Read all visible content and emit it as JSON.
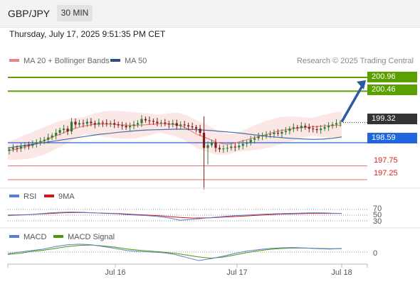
{
  "header": {
    "symbol": "GBP/JPY",
    "timeframe": "30 MIN"
  },
  "datetime": "Thursday, July 17, 2025 9:51:35 PM CET",
  "legend": {
    "ma20_label": "MA 20 + Bollinger Bands",
    "ma50_label": "MA 50",
    "copyright": "Research © 2025 Trading Central"
  },
  "colors": {
    "candle_up": "#2e7d32",
    "candle_down": "#7a1f1f",
    "ma20": "#f08080",
    "ma50": "#4a6fa5",
    "bollinger_fill": "#fbe3e3",
    "target_green": "#5aa000",
    "pivot_blue": "#2266dd",
    "support_red": "#e07070",
    "last_price_box": "#333333",
    "arrow": "#2a5aa0",
    "rsi": "#5b7fd0",
    "rsi_ma": "#d01818",
    "macd": "#5b7fd0",
    "macd_signal": "#4a9a00"
  },
  "levels": {
    "target2": "200.96",
    "target1": "200.46",
    "last": "199.32",
    "pivot": "198.59",
    "support1": "197.75",
    "support2": "197.25"
  },
  "rsi_panel": {
    "rsi_label": "RSI",
    "ma_label": "9MA",
    "levels": [
      "70",
      "50",
      "30"
    ]
  },
  "macd_panel": {
    "macd_label": "MACD",
    "signal_label": "MACD Signal",
    "zero_label": "0"
  },
  "xaxis": {
    "labels": [
      "Jul 16",
      "Jul 17",
      "Jul 18"
    ]
  },
  "chart_data": {
    "type": "candlestick",
    "x_range": [
      "Jul 15",
      "Jul 18"
    ],
    "y_range": [
      196.9,
      201.2
    ],
    "price_closes": [
      198.35,
      198.4,
      198.38,
      198.45,
      198.5,
      198.48,
      198.55,
      198.6,
      198.65,
      198.7,
      198.78,
      198.85,
      198.95,
      199.05,
      199.1,
      199.0,
      199.35,
      199.25,
      199.3,
      199.28,
      199.35,
      199.3,
      199.25,
      199.32,
      199.3,
      199.28,
      199.3,
      199.25,
      199.22,
      199.2,
      199.15,
      199.2,
      199.25,
      199.3,
      199.45,
      199.4,
      199.38,
      199.35,
      199.3,
      199.32,
      199.28,
      199.25,
      199.3,
      199.2,
      199.25,
      199.22,
      199.18,
      199.15,
      199.1,
      198.95,
      198.4,
      198.5,
      198.6,
      198.4,
      198.35,
      198.38,
      198.4,
      198.45,
      198.42,
      198.48,
      198.55,
      198.6,
      198.7,
      198.75,
      198.82,
      198.85,
      198.88,
      198.9,
      198.95,
      198.92,
      198.98,
      199.02,
      199.1,
      199.15,
      199.12,
      199.2,
      199.15,
      199.1,
      199.08,
      199.05,
      199.1,
      199.15,
      199.2,
      199.25,
      199.3,
      199.32
    ],
    "ma20": [
      198.3,
      198.32,
      198.35,
      198.38,
      198.42,
      198.46,
      198.5,
      198.55,
      198.6,
      198.66,
      198.72,
      198.78,
      198.85,
      198.9,
      198.96,
      199.02,
      199.08,
      199.12,
      199.16,
      199.2,
      199.22,
      199.25,
      199.26,
      199.27,
      199.27,
      199.27,
      199.26,
      199.25,
      199.24,
      199.23,
      199.22,
      199.22,
      199.22,
      199.23,
      199.24,
      199.25,
      199.26,
      199.27,
      199.28,
      199.28,
      199.27,
      199.26,
      199.24,
      199.2,
      199.14,
      199.06,
      198.98,
      198.9,
      198.84,
      198.78,
      198.72,
      198.66,
      198.6,
      198.56,
      198.54,
      198.54,
      198.56,
      198.6,
      198.64,
      198.68,
      198.72,
      198.76,
      198.8,
      198.84,
      198.88,
      198.92,
      198.96,
      199.0,
      199.03,
      199.06,
      199.08,
      199.1,
      199.12,
      199.14,
      199.15,
      199.16,
      199.17,
      199.18,
      199.19,
      199.2,
      199.21,
      199.22,
      199.22,
      199.23
    ],
    "ma50": [
      198.4,
      198.45,
      198.5,
      198.55,
      198.6,
      198.65,
      198.7,
      198.75,
      198.8,
      198.85,
      198.9,
      198.93,
      198.97,
      199.0,
      199.03,
      199.05,
      199.06,
      199.07,
      199.08,
      199.08,
      199.07,
      199.05,
      199.03,
      199.0,
      198.97,
      198.94,
      198.9,
      198.86,
      198.82,
      198.79,
      198.76,
      198.74,
      198.72,
      198.71,
      198.72,
      198.75,
      198.8
    ],
    "rsi_range": [
      20,
      80
    ],
    "rsi": [
      48,
      50,
      52,
      55,
      58,
      60,
      61,
      60,
      58,
      56,
      55,
      52,
      50,
      48,
      45,
      40,
      32,
      35,
      38,
      42,
      45,
      48,
      50,
      52,
      54,
      55,
      56,
      57,
      58,
      58,
      57,
      56
    ],
    "rsi_ma": [
      50,
      51,
      52,
      54,
      56,
      58,
      59,
      59,
      58,
      57,
      56,
      54,
      52,
      50,
      48,
      45,
      42,
      40,
      40,
      41,
      43,
      45,
      47,
      49,
      51,
      53,
      54,
      55,
      56,
      56,
      56,
      56
    ],
    "macd_range": [
      -0.35,
      0.35
    ],
    "macd": [
      -0.05,
      0.0,
      0.05,
      0.1,
      0.18,
      0.24,
      0.26,
      0.24,
      0.18,
      0.12,
      0.05,
      0.02,
      0.0,
      -0.02,
      -0.08,
      -0.18,
      -0.28,
      -0.22,
      -0.14,
      -0.05,
      0.03,
      0.08,
      0.12,
      0.14,
      0.15,
      0.13,
      0.11,
      0.1,
      0.12
    ],
    "macd_signal": [
      -0.08,
      -0.04,
      0.02,
      0.06,
      0.12,
      0.18,
      0.22,
      0.23,
      0.2,
      0.16,
      0.1,
      0.06,
      0.03,
      0.0,
      -0.04,
      -0.1,
      -0.16,
      -0.2,
      -0.17,
      -0.1,
      -0.02,
      0.04,
      0.09,
      0.12,
      0.13,
      0.13,
      0.12,
      0.11,
      0.11
    ]
  }
}
